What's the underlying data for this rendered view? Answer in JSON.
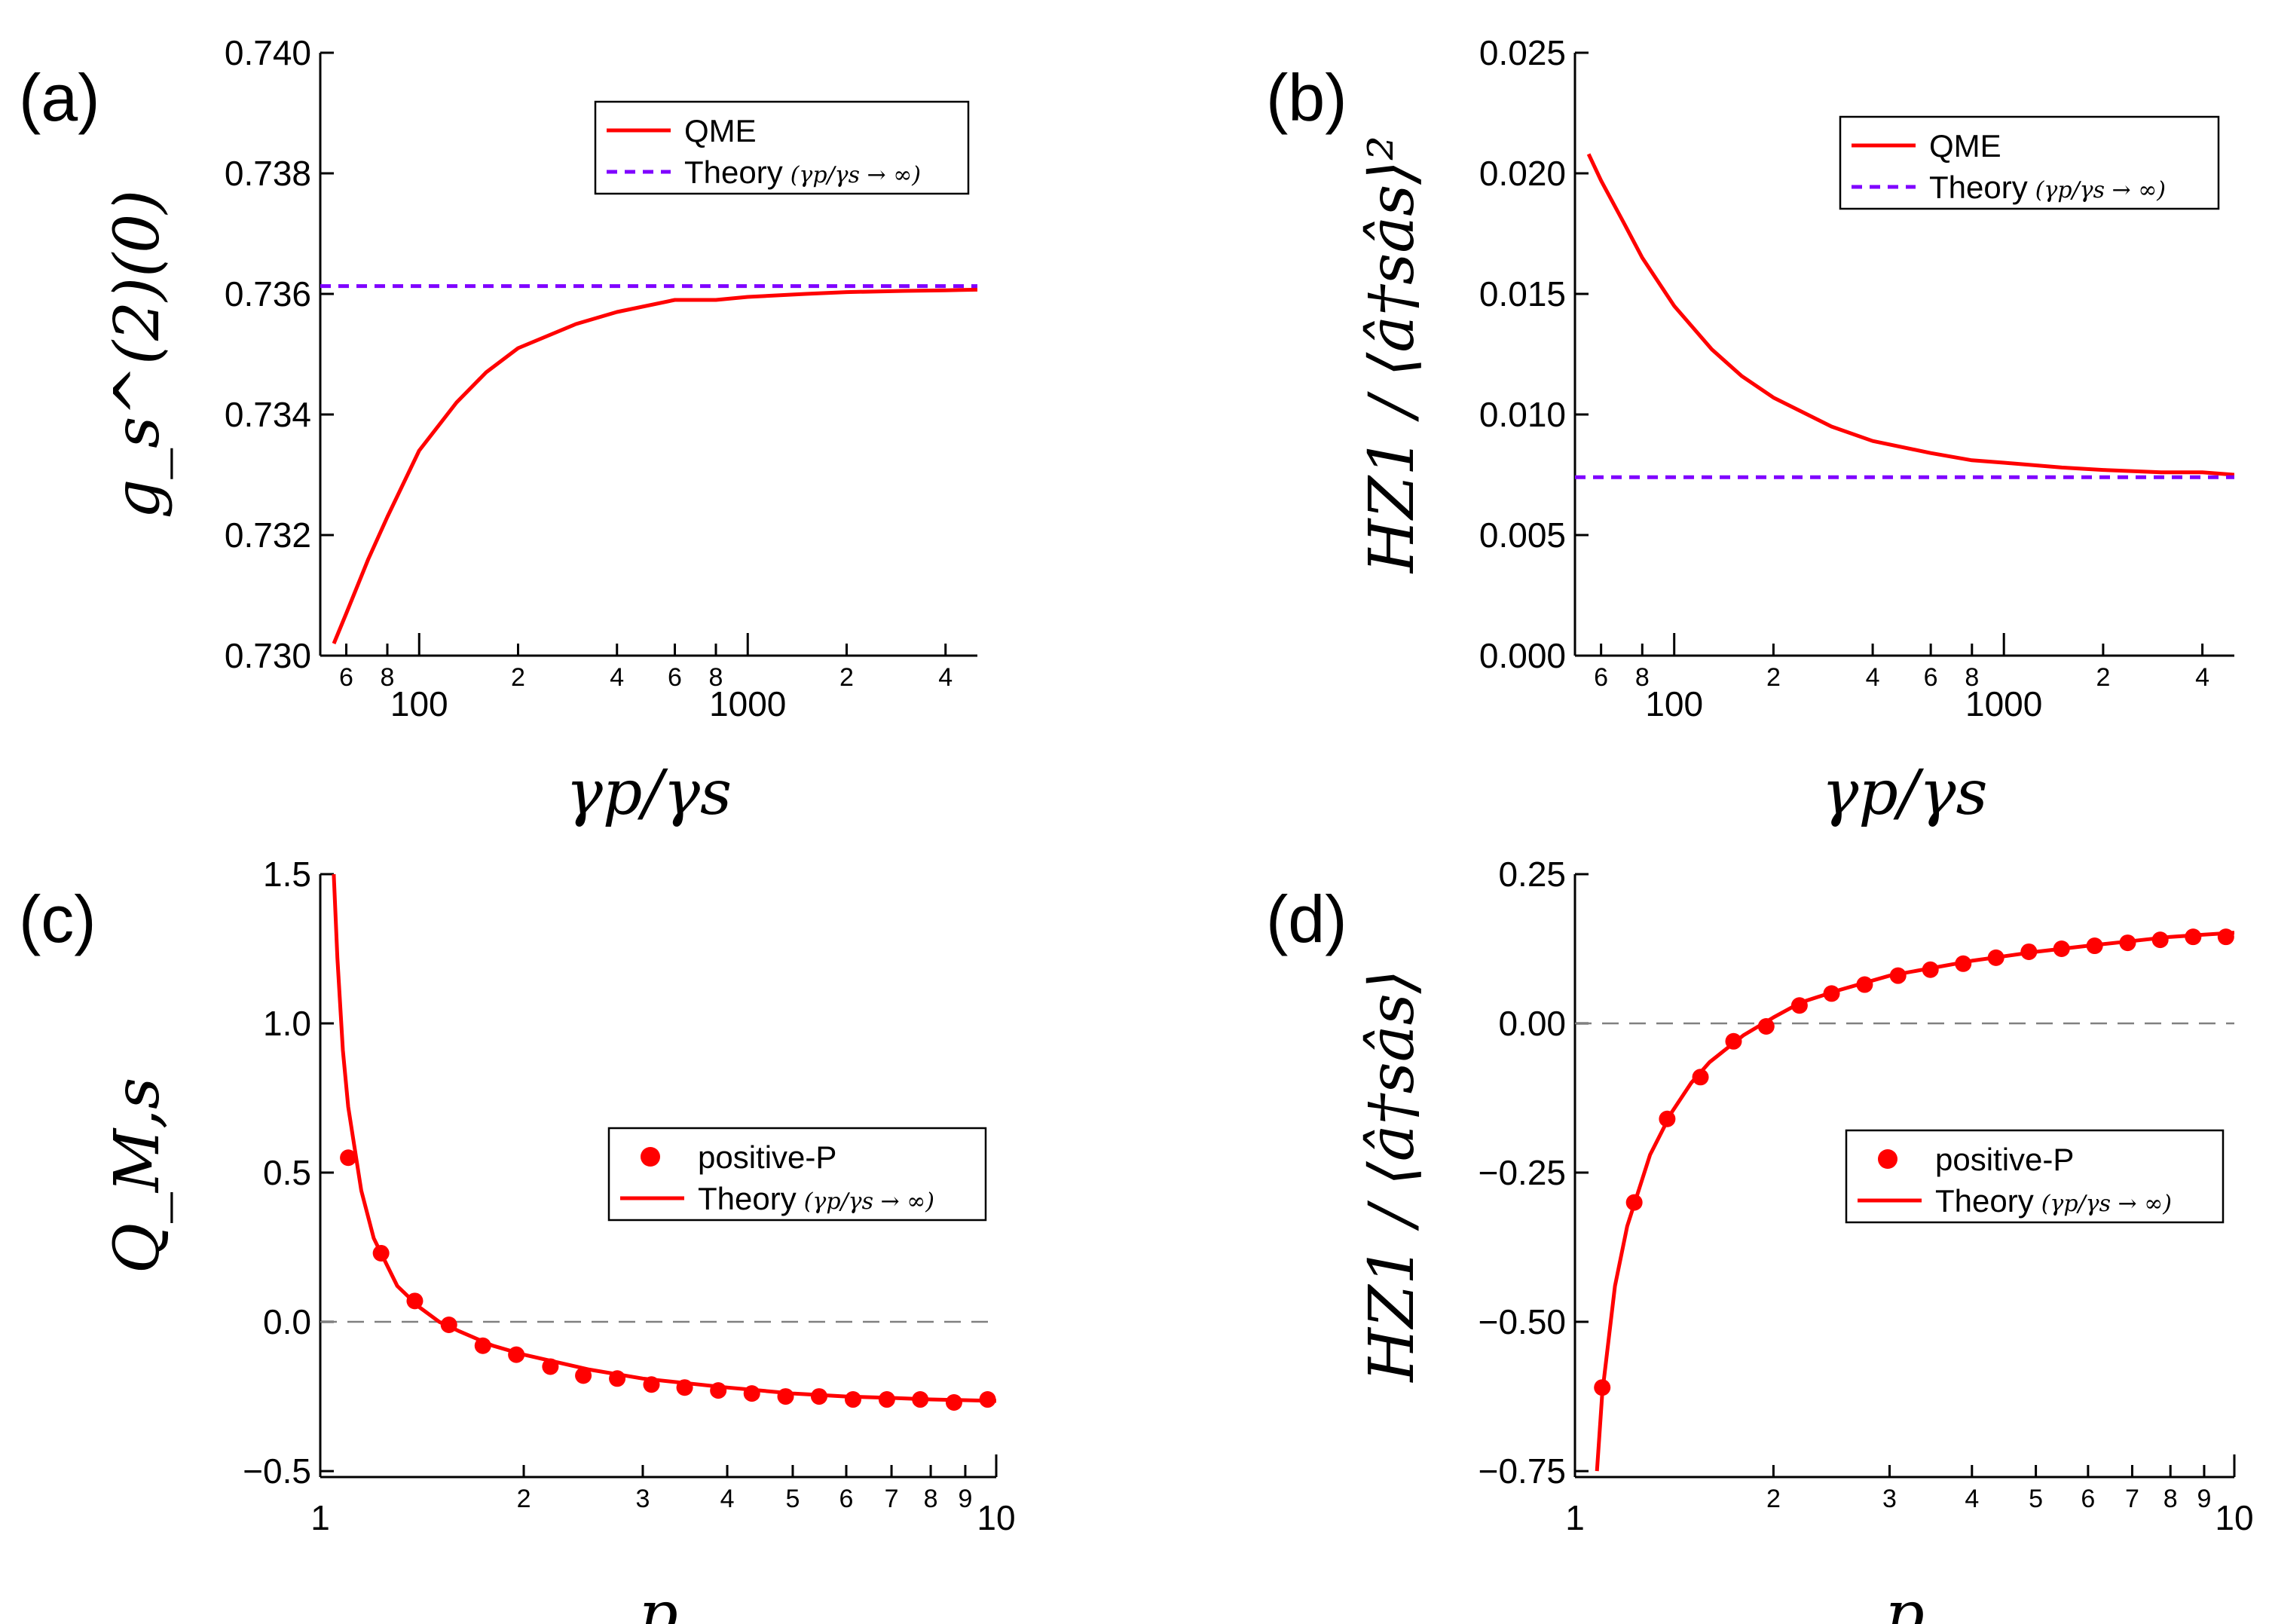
{
  "chart_data": [
    {
      "panel": "(a)",
      "type": "line",
      "xscale": "log",
      "xlim": [
        50,
        5000
      ],
      "ylim": [
        0.73,
        0.74
      ],
      "x_major_ticks": [
        100,
        1000
      ],
      "x_major_labels": [
        "100",
        "1000"
      ],
      "x_minor_ticks": [
        60,
        80,
        200,
        400,
        600,
        800,
        2000,
        4000
      ],
      "x_minor_labels": [
        "6",
        "8",
        "2",
        "4",
        "6",
        "8",
        "2",
        "4"
      ],
      "y_ticks": [
        0.73,
        0.732,
        0.734,
        0.736,
        0.738,
        0.74
      ],
      "y_tick_labels": [
        "0.730",
        "0.732",
        "0.734",
        "0.736",
        "0.738",
        "0.740"
      ],
      "xlabel": "γp/γs",
      "ylabel": "g_s^(2)(0)",
      "legend_position": "top-right",
      "series": [
        {
          "name": "QME",
          "style": "solid",
          "color": "#ff0000",
          "x": [
            55,
            60,
            70,
            80,
            100,
            130,
            160,
            200,
            300,
            400,
            600,
            800,
            1000,
            1500,
            2000,
            3000,
            4000,
            5000
          ],
          "y": [
            0.7302,
            0.7307,
            0.7316,
            0.7323,
            0.7334,
            0.7342,
            0.7347,
            0.7351,
            0.7355,
            0.7357,
            0.7359,
            0.7359,
            0.73595,
            0.736,
            0.73603,
            0.73605,
            0.73606,
            0.73607
          ]
        },
        {
          "name": "Theory",
          "legend_math": "(γp/γs → ∞)",
          "style": "dashed",
          "color": "#7f00ff",
          "x": [
            50,
            5000
          ],
          "y": [
            0.73613,
            0.73613
          ]
        }
      ]
    },
    {
      "panel": "(b)",
      "type": "line",
      "xscale": "log",
      "xlim": [
        50,
        5000
      ],
      "ylim": [
        0.0,
        0.025
      ],
      "x_major_ticks": [
        100,
        1000
      ],
      "x_major_labels": [
        "100",
        "1000"
      ],
      "x_minor_ticks": [
        60,
        80,
        200,
        400,
        600,
        800,
        2000,
        4000
      ],
      "x_minor_labels": [
        "6",
        "8",
        "2",
        "4",
        "6",
        "8",
        "2",
        "4"
      ],
      "y_ticks": [
        0.0,
        0.005,
        0.01,
        0.015,
        0.02,
        0.025
      ],
      "y_tick_labels": [
        "0.000",
        "0.005",
        "0.010",
        "0.015",
        "0.020",
        "0.025"
      ],
      "xlabel": "γp/γs",
      "ylabel": "HZ1 / ⟨â†sâs⟩²",
      "legend_position": "top-right",
      "series": [
        {
          "name": "QME",
          "style": "solid",
          "color": "#ff0000",
          "x": [
            55,
            60,
            70,
            80,
            100,
            130,
            160,
            200,
            300,
            400,
            600,
            800,
            1000,
            1500,
            2000,
            3000,
            4000,
            5000
          ],
          "y": [
            0.0208,
            0.0197,
            0.018,
            0.0165,
            0.0145,
            0.0127,
            0.0116,
            0.0107,
            0.0095,
            0.0089,
            0.0084,
            0.0081,
            0.008,
            0.0078,
            0.0077,
            0.0076,
            0.0076,
            0.0075
          ]
        },
        {
          "name": "Theory",
          "legend_math": "(γp/γs → ∞)",
          "style": "dashed",
          "color": "#7f00ff",
          "x": [
            50,
            5000
          ],
          "y": [
            0.0074,
            0.0074
          ]
        }
      ]
    },
    {
      "panel": "(c)",
      "type": "line",
      "xscale": "log",
      "xlim": [
        1,
        10
      ],
      "ylim": [
        -0.52,
        1.5
      ],
      "x_major_ticks": [
        1,
        10
      ],
      "x_major_labels": [
        "1",
        "10"
      ],
      "x_minor_ticks": [
        2,
        3,
        4,
        5,
        6,
        7,
        8,
        9
      ],
      "x_minor_labels": [
        "2",
        "3",
        "4",
        "5",
        "6",
        "7",
        "8",
        "9"
      ],
      "y_ticks": [
        -0.5,
        0.0,
        0.5,
        1.0,
        1.5
      ],
      "y_tick_labels": [
        "−0.5",
        "0.0",
        "0.5",
        "1.0",
        "1.5"
      ],
      "xlabel": "p",
      "ylabel": "Q_M,s",
      "zero_line": true,
      "legend_position": "lower-right",
      "series": [
        {
          "name": "positive-P",
          "style": "markers",
          "color": "#ff0000",
          "x": [
            1.1,
            1.23,
            1.38,
            1.55,
            1.74,
            1.95,
            2.19,
            2.45,
            2.75,
            3.09,
            3.46,
            3.88,
            4.35,
            4.88,
            5.47,
            6.14,
            6.89,
            7.72,
            8.66,
            9.71
          ],
          "y": [
            0.55,
            0.23,
            0.07,
            -0.01,
            -0.08,
            -0.11,
            -0.15,
            -0.18,
            -0.19,
            -0.21,
            -0.22,
            -0.23,
            -0.24,
            -0.25,
            -0.25,
            -0.26,
            -0.26,
            -0.26,
            -0.27,
            -0.26
          ]
        },
        {
          "name": "Theory",
          "legend_math": "(γp/γs → ∞)",
          "style": "solid",
          "color": "#ff0000",
          "x": [
            1.047,
            1.06,
            1.08,
            1.1,
            1.15,
            1.2,
            1.3,
            1.4,
            1.5,
            1.6,
            1.8,
            2.0,
            2.5,
            3.0,
            4.0,
            5.0,
            6.0,
            7.0,
            8.0,
            10.0
          ],
          "y": [
            1.5,
            1.22,
            0.91,
            0.72,
            0.44,
            0.28,
            0.12,
            0.05,
            0.0,
            -0.03,
            -0.08,
            -0.11,
            -0.16,
            -0.19,
            -0.22,
            -0.24,
            -0.25,
            -0.255,
            -0.26,
            -0.265
          ]
        }
      ]
    },
    {
      "panel": "(d)",
      "type": "line",
      "xscale": "log",
      "xlim": [
        1,
        10
      ],
      "ylim": [
        -0.76,
        0.25
      ],
      "x_major_ticks": [
        1,
        10
      ],
      "x_major_labels": [
        "1",
        "10"
      ],
      "x_minor_ticks": [
        2,
        3,
        4,
        5,
        6,
        7,
        8,
        9
      ],
      "x_minor_labels": [
        "2",
        "3",
        "4",
        "5",
        "6",
        "7",
        "8",
        "9"
      ],
      "y_ticks": [
        -0.75,
        -0.5,
        -0.25,
        0.0,
        0.25
      ],
      "y_tick_labels": [
        "−0.75",
        "−0.50",
        "−0.25",
        "0.00",
        "0.25"
      ],
      "xlabel": "p",
      "ylabel": "HZ1 / ⟨â†sâs⟩",
      "zero_line": true,
      "legend_position": "center-right",
      "series": [
        {
          "name": "positive-P",
          "style": "markers",
          "color": "#ff0000",
          "x": [
            1.1,
            1.23,
            1.38,
            1.55,
            1.74,
            1.95,
            2.19,
            2.45,
            2.75,
            3.09,
            3.46,
            3.88,
            4.35,
            4.88,
            5.47,
            6.14,
            6.89,
            7.72,
            8.66,
            9.71
          ],
          "y": [
            -0.61,
            -0.3,
            -0.16,
            -0.09,
            -0.03,
            -0.005,
            0.03,
            0.05,
            0.065,
            0.08,
            0.09,
            0.1,
            0.11,
            0.12,
            0.125,
            0.13,
            0.135,
            0.14,
            0.145,
            0.145
          ]
        },
        {
          "name": "Theory",
          "legend_math": "(γp/γs → ∞)",
          "style": "solid",
          "color": "#ff0000",
          "x": [
            1.08,
            1.1,
            1.15,
            1.2,
            1.3,
            1.4,
            1.5,
            1.6,
            1.8,
            2.0,
            2.2,
            2.5,
            3.0,
            4.0,
            5.0,
            6.0,
            7.0,
            8.0,
            10.0
          ],
          "y": [
            -0.75,
            -0.62,
            -0.44,
            -0.34,
            -0.22,
            -0.15,
            -0.1,
            -0.065,
            -0.02,
            0.01,
            0.035,
            0.055,
            0.08,
            0.105,
            0.12,
            0.13,
            0.138,
            0.145,
            0.152
          ]
        }
      ]
    }
  ],
  "colors": {
    "qme": "#ff0000",
    "theory_dashed": "#7f00ff",
    "zero_line": "#808080"
  }
}
